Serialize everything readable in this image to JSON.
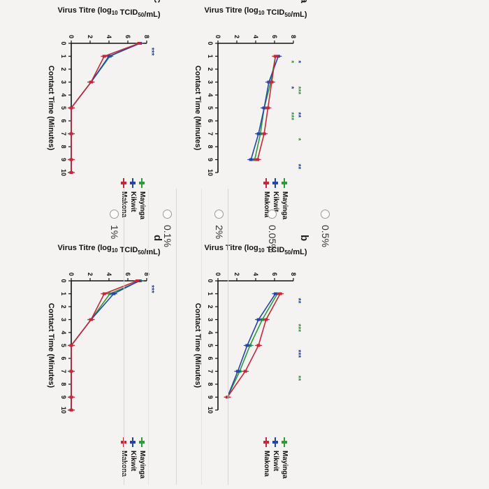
{
  "chart_data": [
    {
      "panel": "a",
      "type": "line",
      "xlabel": "Contact Time (Minutes)",
      "ylabel": "Virus Titre (log10 TCID50/mL)",
      "xlim": [
        0,
        10
      ],
      "ylim": [
        0,
        8
      ],
      "xticks": [
        0,
        1,
        2,
        3,
        4,
        5,
        6,
        7,
        8,
        9,
        10
      ],
      "yticks": [
        0,
        2,
        4,
        6,
        8
      ],
      "legend": [
        "Mayinga",
        "Kikwit",
        "Makona"
      ],
      "series": [
        {
          "name": "Mayinga",
          "color": "#2f9a3a",
          "x": [
            1,
            3,
            5,
            7,
            9
          ],
          "y": [
            6.1,
            5.6,
            4.9,
            4.5,
            3.9
          ]
        },
        {
          "name": "Kikwit",
          "color": "#2646a6",
          "x": [
            1,
            3,
            5,
            7,
            9
          ],
          "y": [
            6.4,
            5.4,
            4.9,
            4.3,
            3.5
          ]
        },
        {
          "name": "Makona",
          "color": "#c4283a",
          "x": [
            1,
            3,
            5,
            7,
            9
          ],
          "y": [
            6.1,
            5.7,
            5.3,
            4.9,
            4.2
          ]
        }
      ],
      "annotations": [
        "*",
        "***",
        "**",
        "*",
        "**",
        "*",
        "*",
        "***"
      ]
    },
    {
      "panel": "b",
      "type": "line",
      "xlabel": "Contact Time (Minutes)",
      "ylabel": "Virus Titre (log10 TCID50/mL)",
      "xlim": [
        0,
        10
      ],
      "ylim": [
        0,
        8
      ],
      "xticks": [
        0,
        1,
        2,
        3,
        4,
        5,
        6,
        7,
        8,
        9,
        10
      ],
      "yticks": [
        0,
        2,
        4,
        6,
        8
      ],
      "legend": [
        "Mayinga",
        "Kikwit",
        "Makona"
      ],
      "series": [
        {
          "name": "Mayinga",
          "color": "#2f9a3a",
          "x": [
            1,
            3,
            5,
            7,
            9
          ],
          "y": [
            6.3,
            4.7,
            3.4,
            2.3,
            1.0
          ]
        },
        {
          "name": "Kikwit",
          "color": "#2646a6",
          "x": [
            1,
            3,
            5,
            7,
            9
          ],
          "y": [
            6.1,
            4.3,
            3.1,
            2.1,
            1.0
          ]
        },
        {
          "name": "Makona",
          "color": "#c4283a",
          "x": [
            1,
            3,
            5,
            7,
            9
          ],
          "y": [
            6.6,
            5.1,
            4.3,
            2.9,
            1.0
          ]
        }
      ],
      "annotations": [
        "**",
        "***",
        "***",
        "**"
      ]
    },
    {
      "panel": "c",
      "type": "line",
      "xlabel": "Contact Time (Minutes)",
      "ylabel": "Virus Titre (log10 TCID50/mL)",
      "xlim": [
        0,
        10
      ],
      "ylim": [
        0,
        8
      ],
      "xticks": [
        0,
        1,
        2,
        3,
        4,
        5,
        6,
        7,
        8,
        9,
        10
      ],
      "yticks": [
        0,
        2,
        4,
        6,
        8
      ],
      "legend": [
        "Mayinga",
        "Kikwit",
        "Makona"
      ],
      "series": [
        {
          "name": "Mayinga",
          "color": "#2f9a3a",
          "x": [
            0,
            1,
            3,
            5,
            7,
            9,
            10
          ],
          "y": [
            7.2,
            4.1,
            2.1,
            0,
            0,
            0,
            0
          ]
        },
        {
          "name": "Kikwit",
          "color": "#2646a6",
          "x": [
            0,
            1,
            3,
            5,
            7,
            9,
            10
          ],
          "y": [
            7.3,
            4.0,
            2.1,
            0,
            0,
            0,
            0
          ]
        },
        {
          "name": "Makona",
          "color": "#c4283a",
          "x": [
            0,
            1,
            3,
            5,
            7,
            9,
            10
          ],
          "y": [
            7.2,
            3.5,
            2.1,
            0,
            0,
            0,
            0
          ]
        }
      ],
      "annotations": [
        "***"
      ]
    },
    {
      "panel": "d",
      "type": "line",
      "xlabel": "Contact Time (Minutes)",
      "ylabel": "Virus Titre (log10 TCID50/mL)",
      "xlim": [
        0,
        10
      ],
      "ylim": [
        0,
        8
      ],
      "xticks": [
        0,
        1,
        2,
        3,
        4,
        5,
        6,
        7,
        8,
        9,
        10
      ],
      "yticks": [
        0,
        2,
        4,
        6,
        8
      ],
      "legend": [
        "Mayinga",
        "Kikwit",
        "Makona"
      ],
      "series": [
        {
          "name": "Mayinga",
          "color": "#2f9a3a",
          "x": [
            0,
            1,
            3,
            5,
            7,
            9,
            10
          ],
          "y": [
            7.3,
            4.1,
            2.1,
            0,
            0,
            0,
            0
          ]
        },
        {
          "name": "Kikwit",
          "color": "#2646a6",
          "x": [
            0,
            1,
            3,
            5,
            7,
            9,
            10
          ],
          "y": [
            7.2,
            4.5,
            2.1,
            0,
            0,
            0,
            0
          ]
        },
        {
          "name": "Makona",
          "color": "#c4283a",
          "x": [
            0,
            1,
            3,
            5,
            7,
            9,
            10
          ],
          "y": [
            7.0,
            3.5,
            2.1,
            0,
            0,
            0,
            0
          ]
        }
      ],
      "annotations": [
        "***"
      ]
    }
  ],
  "labels": {
    "ylabel_prefix": "Virus Titre (log",
    "ylabel_sub1": "10",
    "ylabel_mid": " TCID",
    "ylabel_sub2": "50",
    "ylabel_suffix": "/mL)"
  },
  "choices": [
    {
      "label": "1%",
      "selected": false
    },
    {
      "label": "0.1%",
      "selected": false
    },
    {
      "label": "2%",
      "selected": false
    },
    {
      "label": "0.05%",
      "selected": false
    },
    {
      "label": "0.5%",
      "selected": false
    }
  ]
}
